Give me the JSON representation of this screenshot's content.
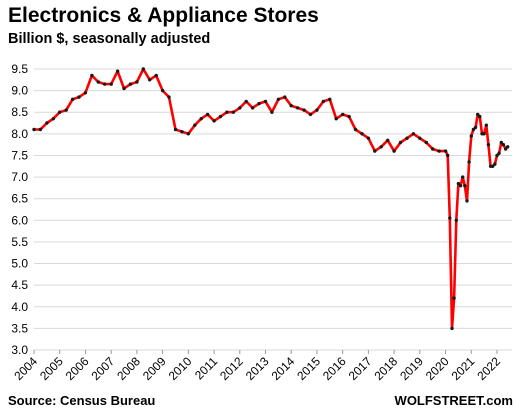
{
  "header": {
    "title": "Electronics & Appliance Stores",
    "subtitle": "Billion $, seasonally adjusted"
  },
  "footer": {
    "source": "Source: Census Bureau",
    "brand": "WOLFSTREET.com"
  },
  "colors": {
    "line": "#ff0000",
    "marker": "#1a1a1a",
    "grid": "#d9d9d9"
  },
  "chart_data": {
    "type": "line",
    "title": "Electronics & Appliance Stores",
    "subtitle": "Billion $, seasonally adjusted",
    "xlabel": "",
    "ylabel": "",
    "grid": true,
    "legend": "none",
    "ylim": [
      3.0,
      9.5
    ],
    "xlim": [
      "2004-01",
      "2022-07"
    ],
    "yticks": [
      "3.0",
      "3.5",
      "4.0",
      "4.5",
      "5.0",
      "5.5",
      "6.0",
      "6.5",
      "7.0",
      "7.5",
      "8.0",
      "8.5",
      "9.0",
      "9.5"
    ],
    "xticks": [
      "2004",
      "2005",
      "2006",
      "2007",
      "2008",
      "2009",
      "2010",
      "2011",
      "2012",
      "2013",
      "2014",
      "2015",
      "2016",
      "2017",
      "2018",
      "2019",
      "2020",
      "2021",
      "2022"
    ],
    "series": [
      {
        "x": [
          "2004-01",
          "2004-04",
          "2004-07",
          "2004-10",
          "2005-01",
          "2005-04",
          "2005-07",
          "2005-10",
          "2006-01",
          "2006-04",
          "2006-07",
          "2006-10",
          "2007-01",
          "2007-04",
          "2007-07",
          "2007-10",
          "2008-01",
          "2008-04",
          "2008-07",
          "2008-10",
          "2009-01",
          "2009-04",
          "2009-07",
          "2009-10",
          "2010-01",
          "2010-04",
          "2010-07",
          "2010-10",
          "2011-01",
          "2011-04",
          "2011-07",
          "2011-10",
          "2012-01",
          "2012-04",
          "2012-07",
          "2012-10",
          "2013-01",
          "2013-04",
          "2013-07",
          "2013-10",
          "2014-01",
          "2014-04",
          "2014-07",
          "2014-10",
          "2015-01",
          "2015-04",
          "2015-07",
          "2015-10",
          "2016-01",
          "2016-04",
          "2016-07",
          "2016-10",
          "2017-01",
          "2017-04",
          "2017-07",
          "2017-10",
          "2018-01",
          "2018-04",
          "2018-07",
          "2018-10",
          "2019-01",
          "2019-04",
          "2019-07",
          "2019-10",
          "2020-01",
          "2020-02",
          "2020-03",
          "2020-04",
          "2020-05",
          "2020-06",
          "2020-07",
          "2020-08",
          "2020-09",
          "2020-10",
          "2020-11",
          "2020-12",
          "2021-01",
          "2021-02",
          "2021-03",
          "2021-04",
          "2021-05",
          "2021-06",
          "2021-07",
          "2021-08",
          "2021-09",
          "2021-10",
          "2021-11",
          "2021-12",
          "2022-01",
          "2022-02",
          "2022-03",
          "2022-04",
          "2022-05",
          "2022-06"
        ],
        "values": [
          8.1,
          8.1,
          8.25,
          8.35,
          8.5,
          8.55,
          8.8,
          8.85,
          8.95,
          9.35,
          9.2,
          9.15,
          9.15,
          9.45,
          9.05,
          9.15,
          9.2,
          9.5,
          9.25,
          9.35,
          9.0,
          8.85,
          8.1,
          8.05,
          8.0,
          8.2,
          8.35,
          8.45,
          8.3,
          8.4,
          8.5,
          8.5,
          8.6,
          8.75,
          8.6,
          8.7,
          8.75,
          8.5,
          8.8,
          8.85,
          8.65,
          8.6,
          8.55,
          8.45,
          8.55,
          8.75,
          8.8,
          8.35,
          8.45,
          8.4,
          8.1,
          8.0,
          7.9,
          7.6,
          7.7,
          7.85,
          7.6,
          7.8,
          7.9,
          8.0,
          7.9,
          7.8,
          7.65,
          7.6,
          7.6,
          7.5,
          6.05,
          3.5,
          4.2,
          6.0,
          6.85,
          6.8,
          7.0,
          6.8,
          6.45,
          7.35,
          7.95,
          8.1,
          8.15,
          8.45,
          8.4,
          8.0,
          8.0,
          8.2,
          7.75,
          7.25,
          7.25,
          7.3,
          7.5,
          7.55,
          7.8,
          7.75,
          7.65,
          7.7
        ]
      }
    ]
  }
}
